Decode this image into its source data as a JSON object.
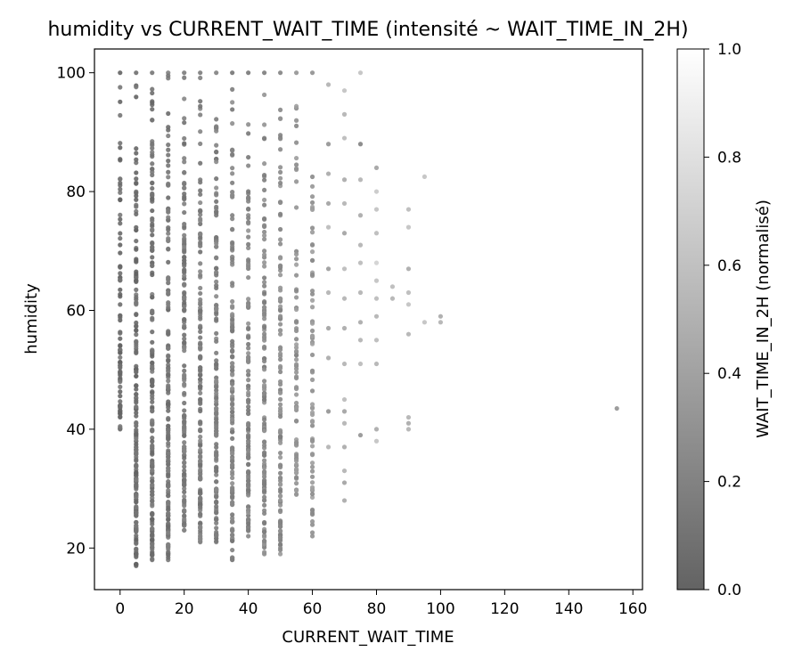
{
  "chart_data": {
    "type": "scatter",
    "title": "humidity vs CURRENT_WAIT_TIME (intensité ~ WAIT_TIME_IN_2H)",
    "xlabel": "CURRENT_WAIT_TIME",
    "ylabel": "humidity",
    "xlim": [
      -8,
      163
    ],
    "ylim": [
      13,
      104
    ],
    "xticks": [
      0,
      20,
      40,
      60,
      80,
      100,
      120,
      140,
      160
    ],
    "yticks": [
      20,
      40,
      60,
      80,
      100
    ],
    "grid": false,
    "colormap": "greys (dark to light)",
    "colorbar": {
      "label": "WAIT_TIME_IN_2H (normalisé)",
      "range": [
        0.0,
        1.0
      ],
      "ticks": [
        "0.0",
        "0.2",
        "0.4",
        "0.6",
        "0.8",
        "1.0"
      ]
    },
    "columns": [
      {
        "x": 0,
        "y_range": [
          40,
          100
        ],
        "n": 90,
        "intensity": 0.05
      },
      {
        "x": 5,
        "y_range": [
          17,
          100
        ],
        "n": 200,
        "intensity": 0.08
      },
      {
        "x": 10,
        "y_range": [
          18,
          100
        ],
        "n": 180,
        "intensity": 0.1
      },
      {
        "x": 15,
        "y_range": [
          18,
          100
        ],
        "n": 180,
        "intensity": 0.12
      },
      {
        "x": 20,
        "y_range": [
          23,
          100
        ],
        "n": 170,
        "intensity": 0.14
      },
      {
        "x": 25,
        "y_range": [
          21,
          100
        ],
        "n": 160,
        "intensity": 0.16
      },
      {
        "x": 30,
        "y_range": [
          21,
          100
        ],
        "n": 160,
        "intensity": 0.18
      },
      {
        "x": 35,
        "y_range": [
          18,
          100
        ],
        "n": 150,
        "intensity": 0.2
      },
      {
        "x": 40,
        "y_range": [
          22,
          100
        ],
        "n": 140,
        "intensity": 0.22
      },
      {
        "x": 45,
        "y_range": [
          19,
          100
        ],
        "n": 130,
        "intensity": 0.24
      },
      {
        "x": 50,
        "y_range": [
          19,
          100
        ],
        "n": 120,
        "intensity": 0.26
      },
      {
        "x": 55,
        "y_range": [
          29,
          100
        ],
        "n": 80,
        "intensity": 0.3
      },
      {
        "x": 60,
        "y_range": [
          22,
          100
        ],
        "n": 70,
        "intensity": 0.32
      }
    ],
    "points": [
      {
        "x": 65,
        "y": 98,
        "c": 0.5
      },
      {
        "x": 65,
        "y": 88,
        "c": 0.3
      },
      {
        "x": 65,
        "y": 83,
        "c": 0.45
      },
      {
        "x": 65,
        "y": 78,
        "c": 0.4
      },
      {
        "x": 65,
        "y": 74,
        "c": 0.55
      },
      {
        "x": 65,
        "y": 67,
        "c": 0.35
      },
      {
        "x": 65,
        "y": 63,
        "c": 0.5
      },
      {
        "x": 65,
        "y": 57,
        "c": 0.4
      },
      {
        "x": 65,
        "y": 52,
        "c": 0.45
      },
      {
        "x": 65,
        "y": 43,
        "c": 0.3
      },
      {
        "x": 65,
        "y": 37,
        "c": 0.5
      },
      {
        "x": 70,
        "y": 97,
        "c": 0.6
      },
      {
        "x": 70,
        "y": 93,
        "c": 0.5
      },
      {
        "x": 70,
        "y": 89,
        "c": 0.55
      },
      {
        "x": 70,
        "y": 82,
        "c": 0.45
      },
      {
        "x": 70,
        "y": 78,
        "c": 0.5
      },
      {
        "x": 70,
        "y": 73,
        "c": 0.4
      },
      {
        "x": 70,
        "y": 67,
        "c": 0.55
      },
      {
        "x": 70,
        "y": 62,
        "c": 0.5
      },
      {
        "x": 70,
        "y": 57,
        "c": 0.45
      },
      {
        "x": 70,
        "y": 51,
        "c": 0.5
      },
      {
        "x": 70,
        "y": 45,
        "c": 0.55
      },
      {
        "x": 70,
        "y": 43,
        "c": 0.4
      },
      {
        "x": 70,
        "y": 41,
        "c": 0.5
      },
      {
        "x": 70,
        "y": 37,
        "c": 0.45
      },
      {
        "x": 70,
        "y": 33,
        "c": 0.5
      },
      {
        "x": 70,
        "y": 31,
        "c": 0.4
      },
      {
        "x": 70,
        "y": 28,
        "c": 0.45
      },
      {
        "x": 75,
        "y": 100,
        "c": 0.6
      },
      {
        "x": 75,
        "y": 88,
        "c": 0.2
      },
      {
        "x": 75,
        "y": 82,
        "c": 0.5
      },
      {
        "x": 75,
        "y": 76,
        "c": 0.45
      },
      {
        "x": 75,
        "y": 71,
        "c": 0.5
      },
      {
        "x": 75,
        "y": 68,
        "c": 0.55
      },
      {
        "x": 75,
        "y": 63,
        "c": 0.5
      },
      {
        "x": 75,
        "y": 58,
        "c": 0.45
      },
      {
        "x": 75,
        "y": 55,
        "c": 0.5
      },
      {
        "x": 75,
        "y": 51,
        "c": 0.55
      },
      {
        "x": 75,
        "y": 39,
        "c": 0.3
      },
      {
        "x": 80,
        "y": 84,
        "c": 0.4
      },
      {
        "x": 80,
        "y": 80,
        "c": 0.65
      },
      {
        "x": 80,
        "y": 77,
        "c": 0.6
      },
      {
        "x": 80,
        "y": 73,
        "c": 0.55
      },
      {
        "x": 80,
        "y": 68,
        "c": 0.7
      },
      {
        "x": 80,
        "y": 65,
        "c": 0.6
      },
      {
        "x": 80,
        "y": 62,
        "c": 0.55
      },
      {
        "x": 80,
        "y": 59,
        "c": 0.5
      },
      {
        "x": 80,
        "y": 55,
        "c": 0.55
      },
      {
        "x": 80,
        "y": 51,
        "c": 0.5
      },
      {
        "x": 80,
        "y": 40,
        "c": 0.45
      },
      {
        "x": 80,
        "y": 38,
        "c": 0.6
      },
      {
        "x": 85,
        "y": 64,
        "c": 0.55
      },
      {
        "x": 85,
        "y": 62,
        "c": 0.5
      },
      {
        "x": 90,
        "y": 77,
        "c": 0.55
      },
      {
        "x": 90,
        "y": 74,
        "c": 0.6
      },
      {
        "x": 90,
        "y": 67,
        "c": 0.45
      },
      {
        "x": 90,
        "y": 63,
        "c": 0.55
      },
      {
        "x": 90,
        "y": 61,
        "c": 0.6
      },
      {
        "x": 90,
        "y": 56,
        "c": 0.5
      },
      {
        "x": 90,
        "y": 42,
        "c": 0.5
      },
      {
        "x": 90,
        "y": 41,
        "c": 0.45
      },
      {
        "x": 90,
        "y": 40,
        "c": 0.5
      },
      {
        "x": 95,
        "y": 82.5,
        "c": 0.6
      },
      {
        "x": 95,
        "y": 58,
        "c": 0.6
      },
      {
        "x": 100,
        "y": 59,
        "c": 0.45
      },
      {
        "x": 100,
        "y": 58,
        "c": 0.5
      },
      {
        "x": 155,
        "y": 43.5,
        "c": 0.3
      }
    ]
  }
}
